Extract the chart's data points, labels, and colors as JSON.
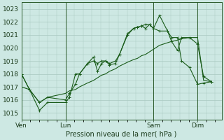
{
  "title": "Pression niveau de la mer( hPa )",
  "background_color": "#cde8e3",
  "grid_color": "#a8c8c0",
  "line_color": "#1a5c1a",
  "x_ticks_labels": [
    "Ven",
    "Lun",
    "Sam",
    "Dim"
  ],
  "x_ticks_pos": [
    0.0,
    0.22,
    0.66,
    0.88
  ],
  "xlim": [
    0.0,
    1.0
  ],
  "ylim": [
    1014.5,
    1023.5
  ],
  "yticks": [
    1015,
    1016,
    1017,
    1018,
    1019,
    1020,
    1021,
    1022,
    1023
  ],
  "vline_positions": [
    0.0,
    0.22,
    0.66,
    0.88
  ],
  "series1_x": [
    0.0,
    0.04,
    0.09,
    0.13,
    0.22,
    0.24,
    0.27,
    0.29,
    0.33,
    0.36,
    0.38,
    0.4,
    0.42,
    0.44,
    0.47,
    0.49,
    0.53,
    0.56,
    0.58,
    0.6,
    0.62,
    0.64,
    0.66,
    0.69,
    0.73,
    0.75,
    0.78,
    0.8,
    0.84,
    0.88,
    0.91,
    0.95
  ],
  "series1_y": [
    1018.0,
    1016.8,
    1015.2,
    1015.8,
    1015.8,
    1016.2,
    1018.0,
    1018.0,
    1018.8,
    1019.3,
    1018.2,
    1018.8,
    1019.0,
    1018.7,
    1018.8,
    1019.5,
    1021.1,
    1021.5,
    1021.6,
    1021.7,
    1021.8,
    1021.8,
    1021.5,
    1022.5,
    1021.3,
    1020.8,
    1020.8,
    1019.0,
    1018.5,
    1017.2,
    1017.3,
    1017.4
  ],
  "series2_x": [
    0.0,
    0.04,
    0.09,
    0.13,
    0.22,
    0.24,
    0.27,
    0.29,
    0.33,
    0.36,
    0.38,
    0.4,
    0.42,
    0.44,
    0.47,
    0.49,
    0.53,
    0.56,
    0.58,
    0.6,
    0.62,
    0.64,
    0.66,
    0.69,
    0.73,
    0.75,
    0.78,
    0.8,
    0.84,
    0.88,
    0.91,
    0.95
  ],
  "series2_y": [
    1018.0,
    1016.8,
    1015.8,
    1016.2,
    1016.0,
    1016.5,
    1017.2,
    1018.0,
    1018.8,
    1019.0,
    1018.8,
    1019.0,
    1019.0,
    1018.8,
    1019.0,
    1019.5,
    1021.0,
    1021.5,
    1021.6,
    1021.7,
    1021.5,
    1021.8,
    1021.5,
    1021.3,
    1021.3,
    1020.5,
    1019.8,
    1020.8,
    1020.8,
    1020.3,
    1017.8,
    1017.4
  ],
  "series3_x": [
    0.0,
    0.04,
    0.09,
    0.13,
    0.22,
    0.24,
    0.27,
    0.29,
    0.33,
    0.36,
    0.38,
    0.4,
    0.42,
    0.44,
    0.47,
    0.49,
    0.53,
    0.56,
    0.58,
    0.6,
    0.62,
    0.64,
    0.66,
    0.69,
    0.73,
    0.75,
    0.78,
    0.8,
    0.84,
    0.88,
    0.91,
    0.95
  ],
  "series3_y": [
    1017.0,
    1016.8,
    1015.8,
    1016.2,
    1016.5,
    1016.7,
    1016.8,
    1017.0,
    1017.3,
    1017.5,
    1017.7,
    1017.9,
    1018.0,
    1018.2,
    1018.4,
    1018.6,
    1018.9,
    1019.1,
    1019.2,
    1019.4,
    1019.5,
    1019.7,
    1019.9,
    1020.2,
    1020.4,
    1020.5,
    1020.6,
    1020.7,
    1020.8,
    1020.8,
    1017.5,
    1017.4
  ]
}
